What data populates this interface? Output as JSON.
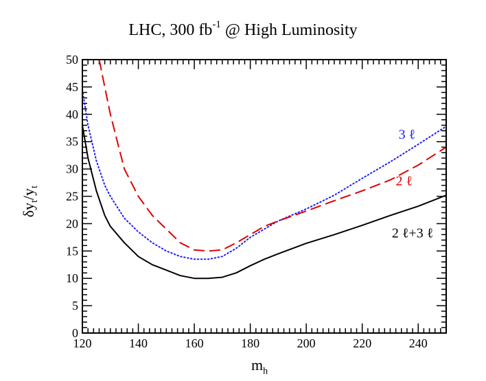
{
  "title": {
    "main": "LHC, 300 fb",
    "sup": "-1",
    "rest": " @ High Luminosity"
  },
  "axis": {
    "x_label_main": "m",
    "x_label_sub": "h",
    "y_label_main": "δy",
    "y_label_sub": "t",
    "y_label_mid": "/y",
    "y_label_sub2": "t"
  },
  "chart_data": {
    "type": "line",
    "title": "LHC, 300 fb-1 @ High Luminosity",
    "xlabel": "m_h",
    "ylabel": "δy_t/y_t",
    "xlim": [
      120,
      250
    ],
    "ylim": [
      0,
      50
    ],
    "x_ticks": [
      120,
      140,
      160,
      180,
      200,
      220,
      240
    ],
    "y_ticks": [
      0,
      5,
      10,
      15,
      20,
      25,
      30,
      35,
      40,
      45,
      50
    ],
    "grid": false,
    "series": [
      {
        "name": "2 ℓ+3 ℓ",
        "color": "#000000",
        "dash": "solid",
        "points": [
          [
            120,
            38
          ],
          [
            122,
            32
          ],
          [
            125,
            26
          ],
          [
            128,
            21.5
          ],
          [
            130,
            19.5
          ],
          [
            135,
            16.5
          ],
          [
            140,
            14
          ],
          [
            145,
            12.5
          ],
          [
            150,
            11.5
          ],
          [
            155,
            10.5
          ],
          [
            160,
            10
          ],
          [
            165,
            10
          ],
          [
            170,
            10.2
          ],
          [
            175,
            11
          ],
          [
            180,
            12.3
          ],
          [
            185,
            13.5
          ],
          [
            190,
            14.5
          ],
          [
            200,
            16.4
          ],
          [
            210,
            18
          ],
          [
            220,
            19.7
          ],
          [
            230,
            21.5
          ],
          [
            240,
            23.2
          ],
          [
            250,
            25.2
          ]
        ]
      },
      {
        "name": "3 ℓ",
        "color": "#1a1aff",
        "dash": "dotted",
        "points": [
          [
            120,
            44.5
          ],
          [
            122,
            38
          ],
          [
            125,
            31.5
          ],
          [
            128,
            27
          ],
          [
            130,
            25
          ],
          [
            135,
            21
          ],
          [
            140,
            18.5
          ],
          [
            145,
            16.5
          ],
          [
            150,
            15
          ],
          [
            155,
            14
          ],
          [
            160,
            13.5
          ],
          [
            165,
            13.5
          ],
          [
            170,
            14
          ],
          [
            175,
            15.5
          ],
          [
            180,
            17.5
          ],
          [
            185,
            19
          ],
          [
            190,
            20.5
          ],
          [
            200,
            22.7
          ],
          [
            210,
            25.2
          ],
          [
            220,
            28.3
          ],
          [
            230,
            31.3
          ],
          [
            240,
            34.5
          ],
          [
            250,
            37.8
          ]
        ]
      },
      {
        "name": "2 ℓ",
        "color": "#e00000",
        "dash": "dashed",
        "points": [
          [
            126,
            50
          ],
          [
            128,
            45
          ],
          [
            130,
            40
          ],
          [
            133,
            34
          ],
          [
            135,
            30
          ],
          [
            140,
            25
          ],
          [
            145,
            21.5
          ],
          [
            150,
            19
          ],
          [
            155,
            16.5
          ],
          [
            160,
            15.2
          ],
          [
            165,
            15
          ],
          [
            170,
            15.2
          ],
          [
            175,
            16.5
          ],
          [
            180,
            18
          ],
          [
            185,
            19.5
          ],
          [
            190,
            20.5
          ],
          [
            200,
            22.3
          ],
          [
            210,
            24.2
          ],
          [
            220,
            26
          ],
          [
            230,
            28
          ],
          [
            240,
            30.7
          ],
          [
            250,
            34
          ]
        ]
      }
    ],
    "annotations": [
      {
        "text": "3 ℓ",
        "color": "#1a1aff",
        "x": 236,
        "y": 35.5
      },
      {
        "text": "2 ℓ",
        "color": "#e00000",
        "x": 235,
        "y": 27
      },
      {
        "text": "2 ℓ+3 ℓ",
        "color": "#000000",
        "x": 238,
        "y": 17.5
      }
    ]
  }
}
